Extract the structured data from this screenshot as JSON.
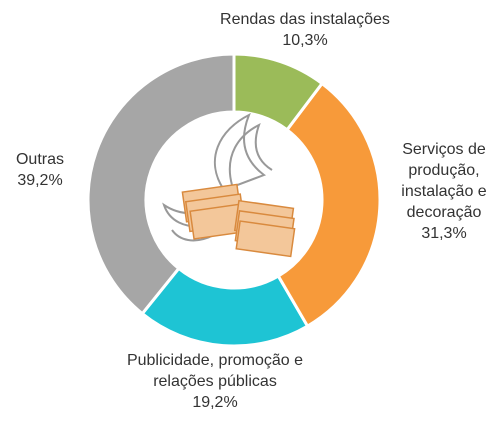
{
  "chart_data": {
    "type": "donut",
    "categories": [
      "Rendas das instalações",
      "Serviços de produção, instalação e decoração",
      "Publicidade, promoção e relações públicas",
      "Outras"
    ],
    "values": [
      10.3,
      31.3,
      19.2,
      39.2
    ],
    "value_labels": [
      "10,3%",
      "31,3%",
      "19,2%",
      "39,2%"
    ],
    "colors": [
      "#9bbb59",
      "#f79a3a",
      "#1ec4d4",
      "#a6a6a6"
    ]
  }
}
